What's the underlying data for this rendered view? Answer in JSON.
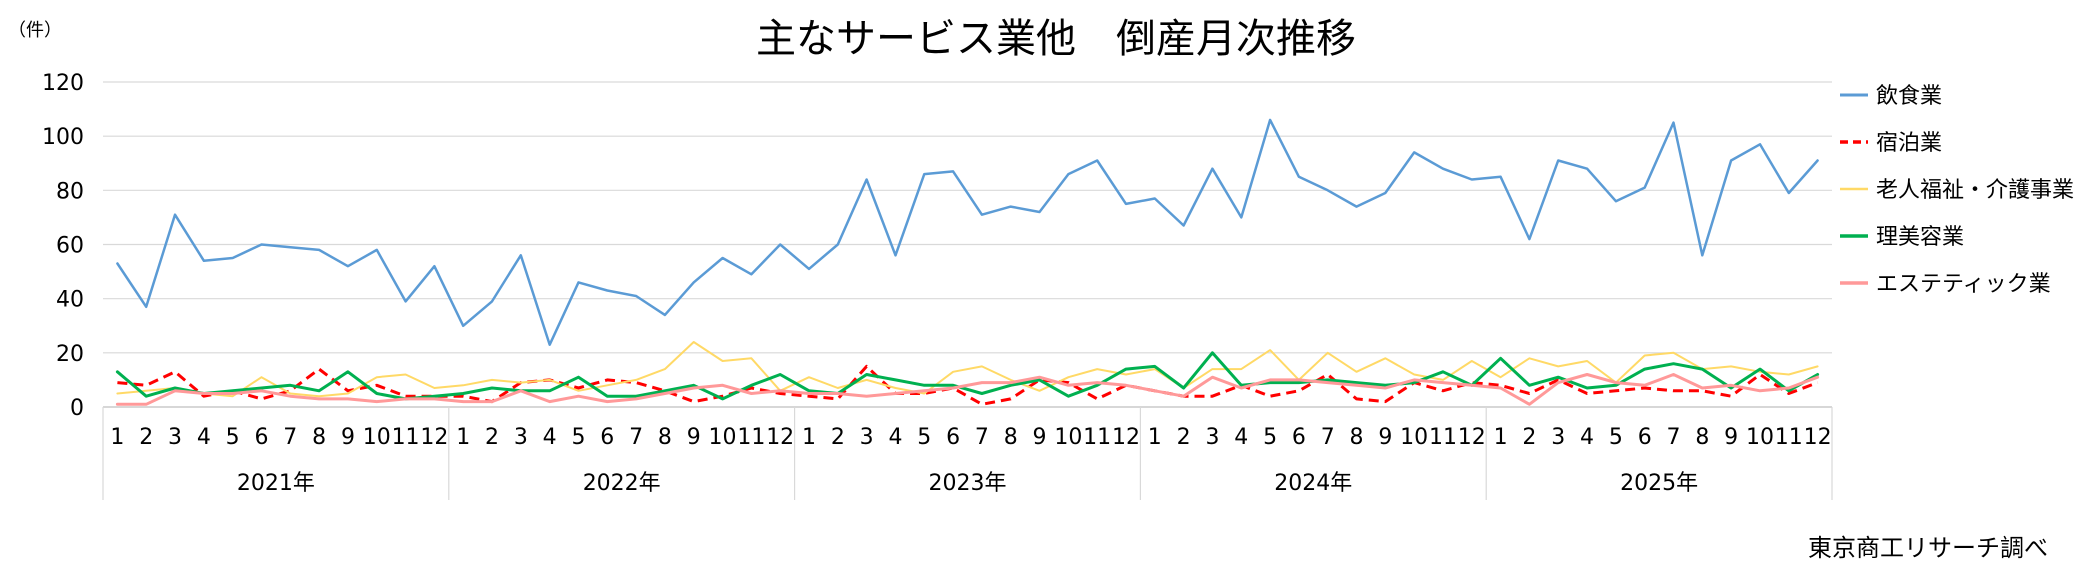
{
  "chart_data": {
    "type": "line",
    "title": "主なサービス業他　倒産月次推移",
    "y_unit_label": "（件）",
    "source_note": "東京商工リサーチ調べ",
    "ylim": [
      0,
      120
    ],
    "yticks": [
      0,
      20,
      40,
      60,
      80,
      100,
      120
    ],
    "grid": true,
    "legend_position": "right",
    "years": [
      "2021年",
      "2022年",
      "2023年",
      "2024年",
      "2025年"
    ],
    "months": [
      "1",
      "2",
      "3",
      "4",
      "5",
      "6",
      "7",
      "8",
      "9",
      "10",
      "11",
      "12"
    ],
    "series": [
      {
        "name": "飲食業",
        "color": "#5b9bd5",
        "dashed": false,
        "width": 2.5,
        "values": [
          53,
          37,
          71,
          54,
          55,
          60,
          59,
          58,
          52,
          58,
          39,
          52,
          30,
          39,
          56,
          23,
          46,
          43,
          41,
          34,
          46,
          55,
          49,
          60,
          51,
          60,
          84,
          56,
          86,
          87,
          71,
          74,
          72,
          86,
          91,
          75,
          77,
          67,
          88,
          70,
          106,
          85,
          80,
          74,
          79,
          94,
          88,
          84,
          85,
          62,
          91,
          88,
          76,
          81,
          105,
          56,
          91,
          97,
          79,
          91
        ]
      },
      {
        "name": "宿泊業",
        "color": "#ff0000",
        "dashed": true,
        "width": 3,
        "values": [
          9,
          8,
          13,
          4,
          6,
          3,
          6,
          14,
          6,
          8,
          4,
          4,
          4,
          2,
          9,
          10,
          7,
          10,
          9,
          6,
          2,
          4,
          7,
          5,
          4,
          3,
          15,
          5,
          5,
          7,
          1,
          3,
          10,
          9,
          3,
          8,
          6,
          4,
          4,
          8,
          4,
          6,
          12,
          3,
          2,
          9,
          6,
          9,
          8,
          5,
          10,
          5,
          6,
          7,
          6,
          6,
          4,
          12,
          5,
          9
        ]
      },
      {
        "name": "老人福祉・介護事業",
        "color": "#ffd966",
        "dashed": false,
        "width": 2,
        "values": [
          5,
          6,
          7,
          5,
          4,
          11,
          5,
          4,
          5,
          11,
          12,
          7,
          8,
          10,
          9,
          10,
          6,
          8,
          10,
          14,
          24,
          17,
          18,
          6,
          11,
          7,
          10,
          7,
          5,
          13,
          15,
          10,
          6,
          11,
          14,
          12,
          14,
          7,
          14,
          14,
          21,
          10,
          20,
          13,
          18,
          12,
          10,
          17,
          11,
          18,
          15,
          17,
          9,
          19,
          20,
          14,
          15,
          13,
          12,
          15
        ]
      },
      {
        "name": "理美容業",
        "color": "#00b050",
        "dashed": false,
        "width": 3,
        "values": [
          13,
          4,
          7,
          5,
          6,
          7,
          8,
          6,
          13,
          5,
          3,
          4,
          5,
          7,
          6,
          6,
          11,
          4,
          4,
          6,
          8,
          3,
          8,
          12,
          6,
          5,
          12,
          10,
          8,
          8,
          5,
          8,
          10,
          4,
          8,
          14,
          15,
          7,
          20,
          8,
          9,
          9,
          10,
          9,
          8,
          9,
          13,
          8,
          18,
          8,
          11,
          7,
          8,
          14,
          16,
          14,
          7,
          14,
          6,
          12
        ]
      },
      {
        "name": "エステティック業",
        "color": "#ff9999",
        "dashed": false,
        "width": 3,
        "values": [
          1,
          1,
          6,
          5,
          5,
          6,
          4,
          3,
          3,
          2,
          3,
          3,
          2,
          2,
          6,
          2,
          4,
          2,
          3,
          5,
          7,
          8,
          5,
          6,
          5,
          5,
          4,
          5,
          6,
          7,
          9,
          9,
          11,
          8,
          9,
          8,
          6,
          4,
          11,
          7,
          10,
          10,
          9,
          8,
          7,
          10,
          9,
          8,
          7,
          1,
          9,
          12,
          9,
          8,
          12,
          7,
          8,
          6,
          7,
          11
        ]
      }
    ]
  }
}
